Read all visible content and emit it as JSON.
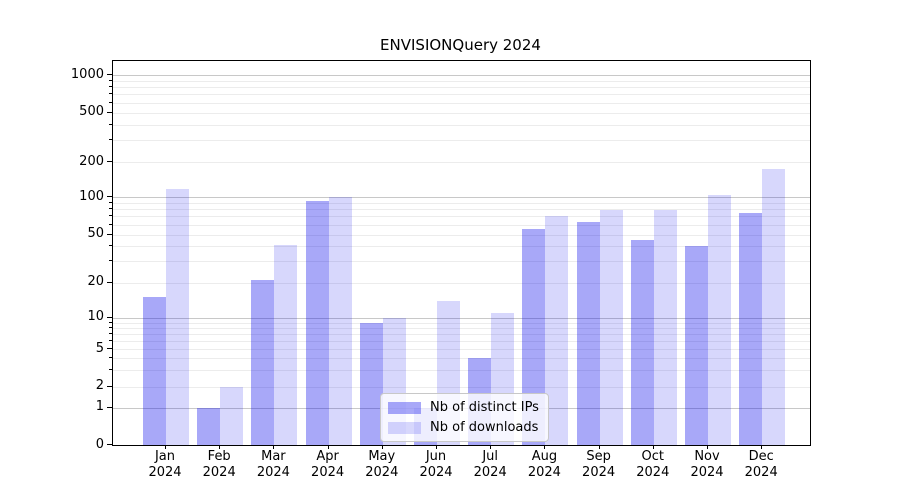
{
  "title": "ENVISIONQuery 2024",
  "colors": {
    "distinct_ips_bar": "rgba(0,0,235,0.34)",
    "downloads_bar": "rgba(0,0,235,0.155)",
    "major_gridline": "#c8c8c8",
    "minor_gridline": "#ececec",
    "axis": "#000000"
  },
  "legend": {
    "position": "lower center",
    "items": [
      {
        "label": "Nb of distinct IPs"
      },
      {
        "label": "Nb of downloads"
      }
    ]
  },
  "chart_data": {
    "type": "bar",
    "title": "ENVISIONQuery 2024",
    "categories": [
      "Jan 2024",
      "Feb 2024",
      "Mar 2024",
      "Apr 2024",
      "May 2024",
      "Jun 2024",
      "Jul 2024",
      "Aug 2024",
      "Sep 2024",
      "Oct 2024",
      "Nov 2024",
      "Dec 2024"
    ],
    "x_tick_line1": [
      "Jan",
      "Feb",
      "Mar",
      "Apr",
      "May",
      "Jun",
      "Jul",
      "Aug",
      "Sep",
      "Oct",
      "Nov",
      "Dec"
    ],
    "x_tick_line2": "2024",
    "series": [
      {
        "name": "Nb of distinct IPs",
        "color": "rgba(0,0,235,0.34)",
        "values": [
          15,
          1,
          21,
          93,
          9,
          1,
          4,
          55,
          63,
          45,
          40,
          75
        ]
      },
      {
        "name": "Nb of downloads",
        "color": "rgba(0,0,235,0.155)",
        "values": [
          118,
          2,
          41,
          100,
          10,
          14,
          11,
          70,
          78,
          78,
          105,
          175
        ]
      }
    ],
    "xlabel": "",
    "ylabel": "",
    "yscale": "symlog",
    "ylim": [
      0,
      1300
    ],
    "y_ticks": [
      0,
      1,
      2,
      5,
      10,
      20,
      50,
      100,
      200,
      500,
      1000
    ],
    "grid": true,
    "legend_position": "lower center"
  }
}
